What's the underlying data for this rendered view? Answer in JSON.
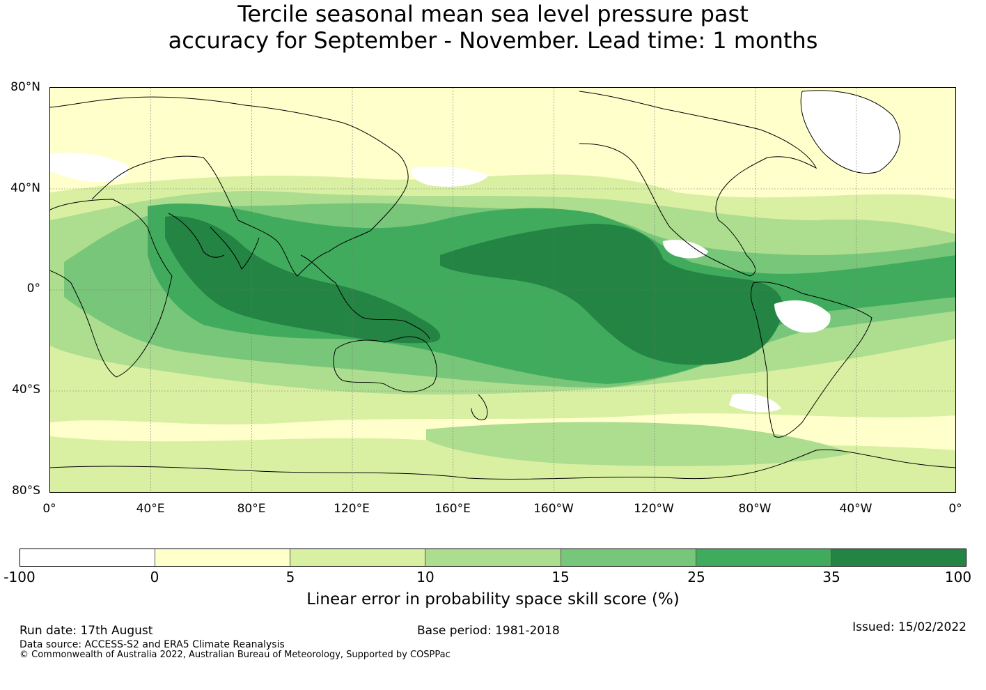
{
  "title": {
    "line1": "Tercile seasonal mean sea level pressure past",
    "line2": "accuracy for September - November. Lead time: 1 months"
  },
  "map": {
    "lat_labels": [
      "80°N",
      "40°N",
      "0°",
      "40°S",
      "80°S"
    ],
    "lon_labels": [
      "0°",
      "40°E",
      "80°E",
      "120°E",
      "160°E",
      "160°W",
      "120°W",
      "80°W",
      "40°W",
      "0°"
    ],
    "longitude_range": [
      0,
      360
    ],
    "latitude_range": [
      -80,
      80
    ],
    "grid": true
  },
  "colorbar": {
    "label": "Linear error in probability space skill score (%)",
    "ticks": [
      "-100",
      "0",
      "5",
      "10",
      "15",
      "25",
      "35",
      "100"
    ],
    "colors": [
      "#ffffff",
      "#ffffcc",
      "#d9f0a3",
      "#addd8e",
      "#78c679",
      "#41ab5d",
      "#238443"
    ]
  },
  "footer": {
    "run_date": "Run date: 17th August",
    "base_period": "Base period: 1981-2018",
    "issued": "Issued: 15/02/2022",
    "data_source": "Data source: ACCESS-S2 and ERA5 Climate Reanalysis",
    "copyright": "© Commonwealth of Australia 2022, Australian Bureau of Meteorology, Supported by COSPPac"
  }
}
